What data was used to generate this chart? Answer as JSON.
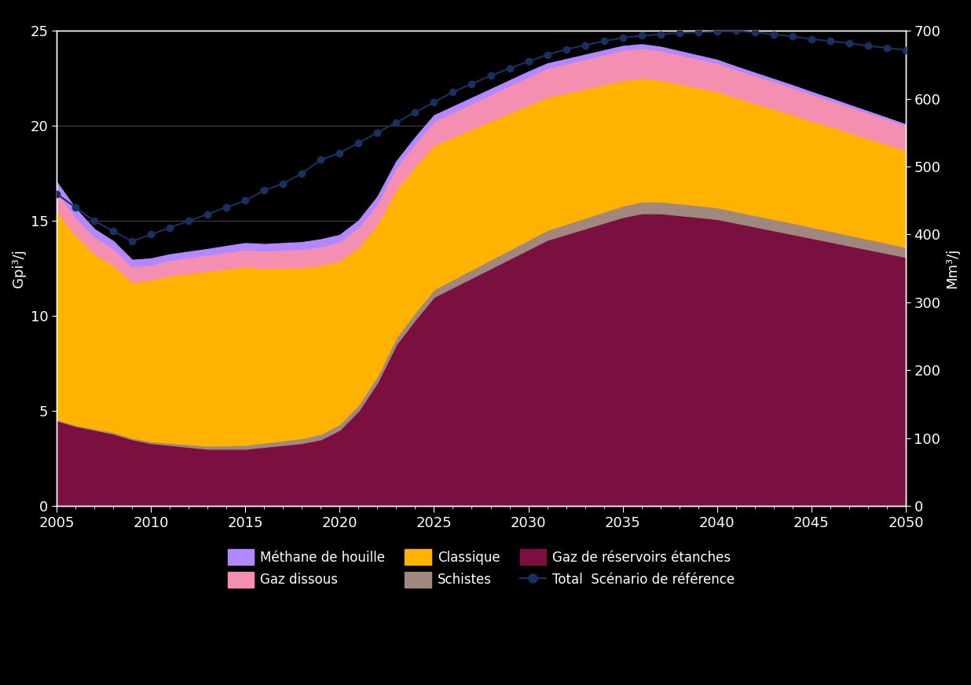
{
  "years": [
    2005,
    2006,
    2007,
    2008,
    2009,
    2010,
    2011,
    2012,
    2013,
    2014,
    2015,
    2016,
    2017,
    2018,
    2019,
    2020,
    2021,
    2022,
    2023,
    2024,
    2025,
    2026,
    2027,
    2028,
    2029,
    2030,
    2031,
    2032,
    2033,
    2034,
    2035,
    2036,
    2037,
    2038,
    2039,
    2040,
    2041,
    2042,
    2043,
    2044,
    2045,
    2046,
    2047,
    2048,
    2049,
    2050
  ],
  "methane_houille": [
    0.5,
    0.45,
    0.4,
    0.38,
    0.35,
    0.32,
    0.3,
    0.3,
    0.3,
    0.32,
    0.33,
    0.34,
    0.35,
    0.36,
    0.37,
    0.36,
    0.35,
    0.34,
    0.33,
    0.32,
    0.31,
    0.3,
    0.29,
    0.28,
    0.27,
    0.26,
    0.25,
    0.24,
    0.23,
    0.22,
    0.21,
    0.2,
    0.19,
    0.18,
    0.17,
    0.16,
    0.15,
    0.14,
    0.13,
    0.12,
    0.11,
    0.1,
    0.09,
    0.08,
    0.07,
    0.06
  ],
  "gaz_dissous": [
    1.0,
    0.95,
    0.9,
    0.88,
    0.82,
    0.8,
    0.82,
    0.84,
    0.86,
    0.88,
    0.9,
    0.92,
    0.94,
    0.96,
    0.98,
    1.0,
    1.05,
    1.1,
    1.15,
    1.2,
    1.25,
    1.3,
    1.35,
    1.4,
    1.45,
    1.5,
    1.52,
    1.54,
    1.56,
    1.58,
    1.6,
    1.58,
    1.56,
    1.54,
    1.52,
    1.5,
    1.48,
    1.46,
    1.44,
    1.42,
    1.4,
    1.38,
    1.36,
    1.34,
    1.32,
    1.3
  ],
  "classique": [
    11.0,
    10.0,
    9.2,
    8.8,
    8.2,
    8.5,
    8.8,
    9.0,
    9.2,
    9.3,
    9.4,
    9.2,
    9.1,
    9.0,
    8.9,
    8.6,
    8.3,
    8.0,
    7.8,
    7.7,
    7.6,
    7.5,
    7.4,
    7.3,
    7.2,
    7.1,
    7.0,
    6.9,
    6.8,
    6.7,
    6.6,
    6.5,
    6.4,
    6.3,
    6.2,
    6.1,
    6.0,
    5.9,
    5.8,
    5.7,
    5.6,
    5.5,
    5.4,
    5.3,
    5.2,
    5.1
  ],
  "schistes": [
    0.05,
    0.06,
    0.07,
    0.08,
    0.08,
    0.1,
    0.12,
    0.14,
    0.16,
    0.18,
    0.2,
    0.22,
    0.24,
    0.26,
    0.28,
    0.3,
    0.32,
    0.34,
    0.36,
    0.38,
    0.4,
    0.42,
    0.44,
    0.46,
    0.48,
    0.5,
    0.52,
    0.54,
    0.56,
    0.58,
    0.6,
    0.62,
    0.62,
    0.62,
    0.62,
    0.62,
    0.6,
    0.6,
    0.6,
    0.6,
    0.58,
    0.58,
    0.56,
    0.55,
    0.54,
    0.52
  ],
  "reservoirs_etanches": [
    4.5,
    4.2,
    4.0,
    3.8,
    3.5,
    3.3,
    3.2,
    3.1,
    3.0,
    3.0,
    3.0,
    3.1,
    3.2,
    3.3,
    3.5,
    4.0,
    5.0,
    6.5,
    8.5,
    9.8,
    11.0,
    11.5,
    12.0,
    12.5,
    13.0,
    13.5,
    14.0,
    14.3,
    14.6,
    14.9,
    15.2,
    15.4,
    15.4,
    15.3,
    15.2,
    15.1,
    14.9,
    14.7,
    14.5,
    14.3,
    14.1,
    13.9,
    13.7,
    13.5,
    13.3,
    13.1
  ],
  "total_ref_mm3": [
    460,
    440,
    420,
    405,
    390,
    400,
    410,
    420,
    430,
    440,
    450,
    465,
    475,
    490,
    510,
    520,
    535,
    550,
    565,
    580,
    595,
    610,
    622,
    634,
    645,
    655,
    665,
    673,
    679,
    685,
    690,
    693,
    695,
    697,
    698,
    699,
    700,
    698,
    695,
    692,
    688,
    685,
    682,
    678,
    675,
    672
  ],
  "color_methane": "#b388ff",
  "color_gaz_dissous": "#f48fb1",
  "color_classique": "#ffb300",
  "color_schistes": "#a1887f",
  "color_reservoirs": "#7b1040",
  "color_total_ref": "#1a3060",
  "ylabel_left": "Gpi³/j",
  "ylabel_right": "Mm³/j",
  "ylim_left": [
    0,
    25
  ],
  "ylim_right": [
    0,
    700
  ],
  "yticks_left": [
    0,
    5,
    10,
    15,
    20,
    25
  ],
  "yticks_right": [
    0,
    100,
    200,
    300,
    400,
    500,
    600,
    700
  ],
  "xticks": [
    2005,
    2010,
    2015,
    2020,
    2025,
    2030,
    2035,
    2040,
    2045,
    2050
  ],
  "background_color": "#000000",
  "plot_bg_color": "#000000",
  "grid_color": "#555555",
  "text_color": "#ffffff",
  "legend_labels": [
    "Méthane de houille",
    "Gaz dissous",
    "Classique",
    "Schistes",
    "Gaz de réservoirs étanches",
    "Total  Scénario de référence"
  ]
}
